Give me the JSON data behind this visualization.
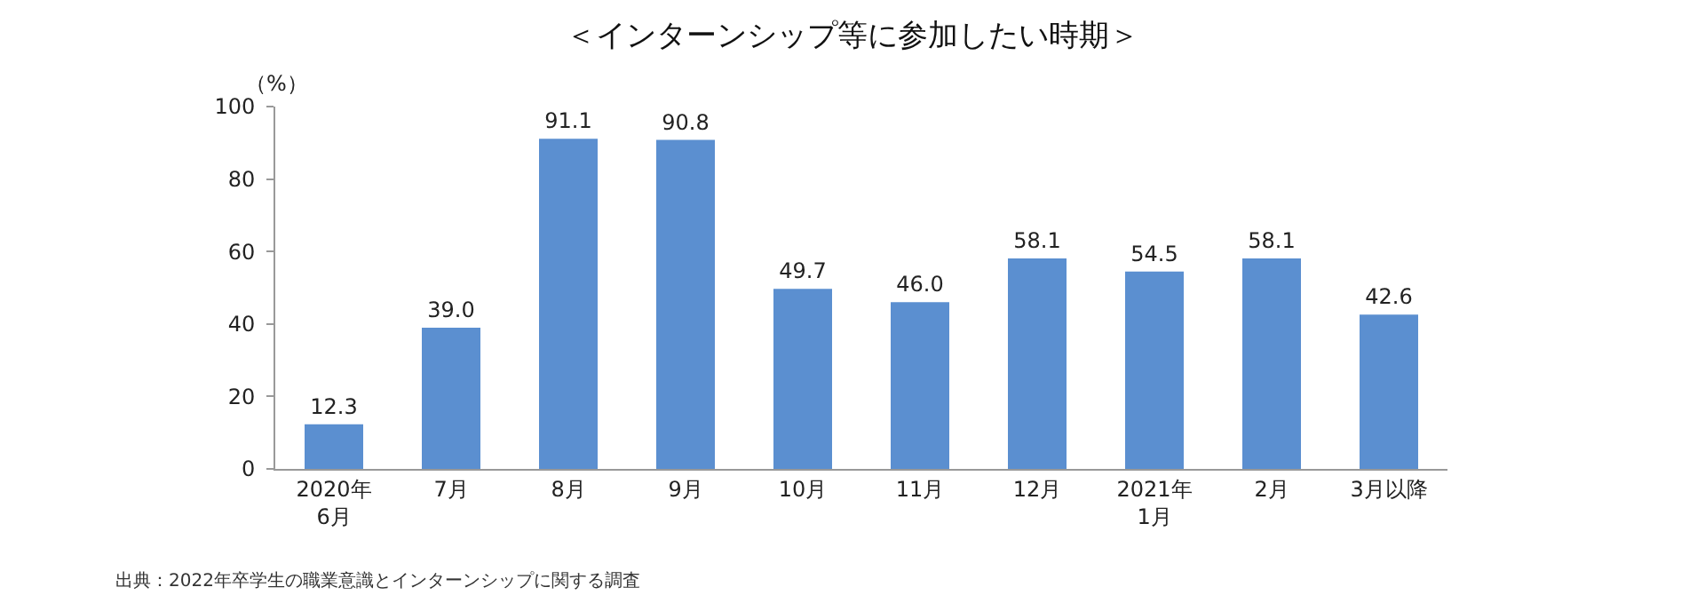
{
  "chart_data": {
    "type": "bar",
    "title": "＜インターンシップ等に参加したい時期＞",
    "ylabel": "（%）",
    "categories": [
      "2020年\n6月",
      "7月",
      "8月",
      "9月",
      "10月",
      "11月",
      "12月",
      "2021年\n1月",
      "2月",
      "3月以降"
    ],
    "values": [
      12.3,
      39.0,
      91.1,
      90.8,
      49.7,
      46.0,
      58.1,
      54.5,
      58.1,
      42.6
    ],
    "value_labels": [
      "12.3",
      "39.0",
      "91.1",
      "90.8",
      "49.7",
      "46.0",
      "58.1",
      "54.5",
      "58.1",
      "42.6"
    ],
    "color": "#5b8fd0",
    "ylim": [
      0,
      100
    ],
    "yticks": [
      0,
      20,
      40,
      60,
      80,
      100
    ],
    "grid": false,
    "annotations": [
      "出典：2022年卒学生の職業意識とインターンシップに関する調査"
    ]
  }
}
